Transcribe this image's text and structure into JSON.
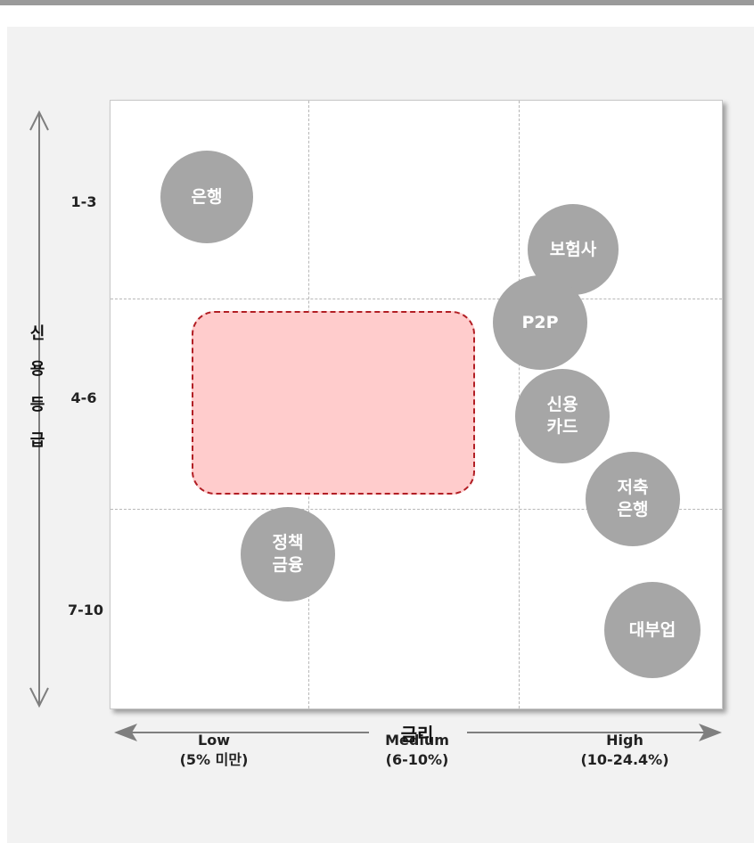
{
  "diagram": {
    "y_axis": {
      "label_chars": [
        "신",
        "용",
        "등",
        "급"
      ],
      "ticks": [
        "1-3",
        "4-6",
        "7-10"
      ]
    },
    "x_axis": {
      "label": "금리",
      "ticks": [
        "Low\n(5% 미만)",
        "Medium\n(6-10%)",
        "High\n(10-24.4%)"
      ]
    },
    "bubbles": [
      {
        "id": "bank",
        "label": "은행"
      },
      {
        "id": "insurance",
        "label": "보험사"
      },
      {
        "id": "p2p",
        "label": "P2P"
      },
      {
        "id": "credit-card",
        "label": "신용\n카드"
      },
      {
        "id": "savings-bank",
        "label": "저축\n은행"
      },
      {
        "id": "policy-finance",
        "label": "정책\n금융"
      },
      {
        "id": "lender",
        "label": "대부업"
      }
    ],
    "colors": {
      "bubble": "#a6a6a6",
      "target_zone_fill": "#ffcccc",
      "target_zone_border": "#b21e24",
      "arrow": "#7f7f7f"
    }
  }
}
